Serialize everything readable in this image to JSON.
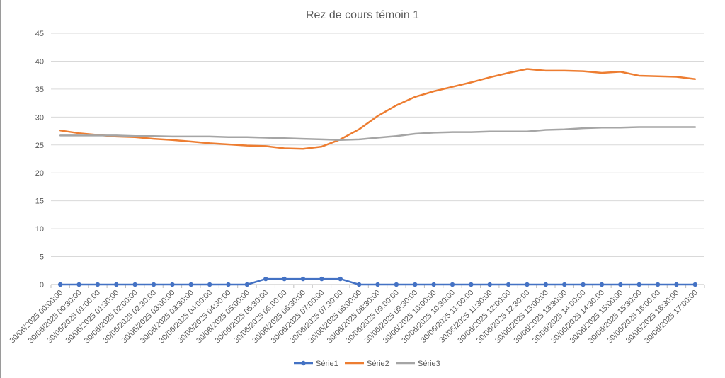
{
  "chart_data": {
    "type": "line",
    "title": "Rez de cours témoin 1",
    "xlabel": "",
    "ylabel": "",
    "ylim": [
      0,
      45
    ],
    "y_ticks": [
      "0",
      "5",
      "10",
      "15",
      "20",
      "25",
      "30",
      "35",
      "40",
      "45"
    ],
    "grid": true,
    "legend_position": "bottom",
    "categories": [
      "30/06/2025 00:00:00",
      "30/06/2025 00:30:00",
      "30/06/2025 01:00:00",
      "30/06/2025 01:30:00",
      "30/06/2025 02:00:00",
      "30/06/2025 02:30:00",
      "30/06/2025 03:00:00",
      "30/06/2025 03:30:00",
      "30/06/2025 04:00:00",
      "30/06/2025 04:30:00",
      "30/06/2025 05:00:00",
      "30/06/2025 05:30:00",
      "30/06/2025 06:00:00",
      "30/06/2025 06:30:00",
      "30/06/2025 07:00:00",
      "30/06/2025 07:30:00",
      "30/06/2025 08:00:00",
      "30/06/2025 08:30:00",
      "30/06/2025 09:00:00",
      "30/06/2025 09:30:00",
      "30/06/2025 10:00:00",
      "30/06/2025 10:30:00",
      "30/06/2025 11:00:00",
      "30/06/2025 11:30:00",
      "30/06/2025 12:00:00",
      "30/06/2025 12:30:00",
      "30/06/2025 13:00:00",
      "30/06/2025 13:30:00",
      "30/06/2025 14:00:00",
      "30/06/2025 14:30:00",
      "30/06/2025 15:00:00",
      "30/06/2025 15:30:00",
      "30/06/2025 16:00:00",
      "30/06/2025 16:30:00",
      "30/06/2025 17:00:00"
    ],
    "series": [
      {
        "name": "Série1",
        "color": "#4472c4",
        "markers": true,
        "values": [
          0,
          0,
          0,
          0,
          0,
          0,
          0,
          0,
          0,
          0,
          0,
          1,
          1,
          1,
          1,
          1,
          0,
          0,
          0,
          0,
          0,
          0,
          0,
          0,
          0,
          0,
          0,
          0,
          0,
          0,
          0,
          0,
          0,
          0,
          0
        ]
      },
      {
        "name": "Série2",
        "color": "#ed7d31",
        "markers": false,
        "values": [
          27.6,
          27.1,
          26.8,
          26.5,
          26.4,
          26.1,
          25.9,
          25.6,
          25.3,
          25.1,
          24.9,
          24.8,
          24.4,
          24.3,
          24.7,
          26.0,
          27.8,
          30.2,
          32.1,
          33.6,
          34.6,
          35.4,
          36.2,
          37.1,
          37.9,
          38.6,
          38.3,
          38.3,
          38.2,
          37.9,
          38.1,
          37.4,
          37.3,
          37.2,
          36.8
        ]
      },
      {
        "name": "Série3",
        "color": "#a5a5a5",
        "markers": false,
        "values": [
          26.7,
          26.7,
          26.7,
          26.7,
          26.6,
          26.6,
          26.5,
          26.5,
          26.5,
          26.4,
          26.4,
          26.3,
          26.2,
          26.1,
          26.0,
          25.9,
          26.0,
          26.3,
          26.6,
          27.0,
          27.2,
          27.3,
          27.3,
          27.4,
          27.4,
          27.4,
          27.7,
          27.8,
          28.0,
          28.1,
          28.1,
          28.2,
          28.2,
          28.2,
          28.2
        ]
      }
    ]
  }
}
